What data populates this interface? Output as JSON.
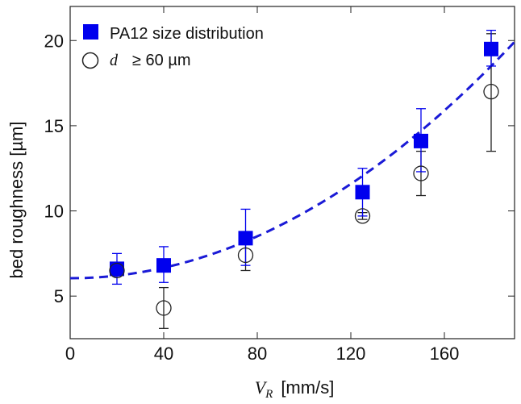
{
  "chart_data": {
    "type": "scatter",
    "xlabel_symbol": "V",
    "xlabel_subscript": "R",
    "xlabel_unit": "[mm/s]",
    "ylabel": "bed roughness [µm]",
    "xlim": [
      0,
      190
    ],
    "ylim": [
      2.5,
      22
    ],
    "xticks": [
      0,
      40,
      80,
      120,
      160
    ],
    "yticks": [
      5,
      10,
      15,
      20
    ],
    "grid": false,
    "legend_position": "top-left",
    "series": [
      {
        "name": "PA12 size distribution",
        "marker": "filled-square",
        "color": "#0000ee",
        "points": [
          {
            "x": 20,
            "y": 6.6,
            "err_low": 5.7,
            "err_high": 7.5
          },
          {
            "x": 40,
            "y": 6.8,
            "err_low": 5.8,
            "err_high": 7.9
          },
          {
            "x": 75,
            "y": 8.4,
            "err_low": 6.8,
            "err_high": 10.1
          },
          {
            "x": 125,
            "y": 11.1,
            "err_low": 9.7,
            "err_high": 12.5
          },
          {
            "x": 150,
            "y": 14.1,
            "err_low": 12.3,
            "err_high": 16.0
          },
          {
            "x": 180,
            "y": 19.5,
            "err_low": 18.5,
            "err_high": 20.6
          }
        ]
      },
      {
        "name_symbol": "d",
        "name_rest": "≥ 60 µm",
        "marker": "open-circle",
        "color": "#222222",
        "points": [
          {
            "x": 20,
            "y": 6.5,
            "err_low": 6.2,
            "err_high": 6.8
          },
          {
            "x": 40,
            "y": 4.3,
            "err_low": 3.1,
            "err_high": 5.5
          },
          {
            "x": 75,
            "y": 7.4,
            "err_low": 6.5,
            "err_high": 8.2
          },
          {
            "x": 125,
            "y": 9.7,
            "err_low": 9.5,
            "err_high": 9.9
          },
          {
            "x": 150,
            "y": 12.2,
            "err_low": 10.9,
            "err_high": 13.5
          },
          {
            "x": 180,
            "y": 17.0,
            "err_low": 13.5,
            "err_high": 20.4
          }
        ]
      }
    ],
    "fit_curve": {
      "style": "dashed",
      "color": "#1a1ad6",
      "x_start": 0,
      "x_end": 190,
      "y_at_x_start": 6.05,
      "y_at_180": 18.5
    }
  }
}
